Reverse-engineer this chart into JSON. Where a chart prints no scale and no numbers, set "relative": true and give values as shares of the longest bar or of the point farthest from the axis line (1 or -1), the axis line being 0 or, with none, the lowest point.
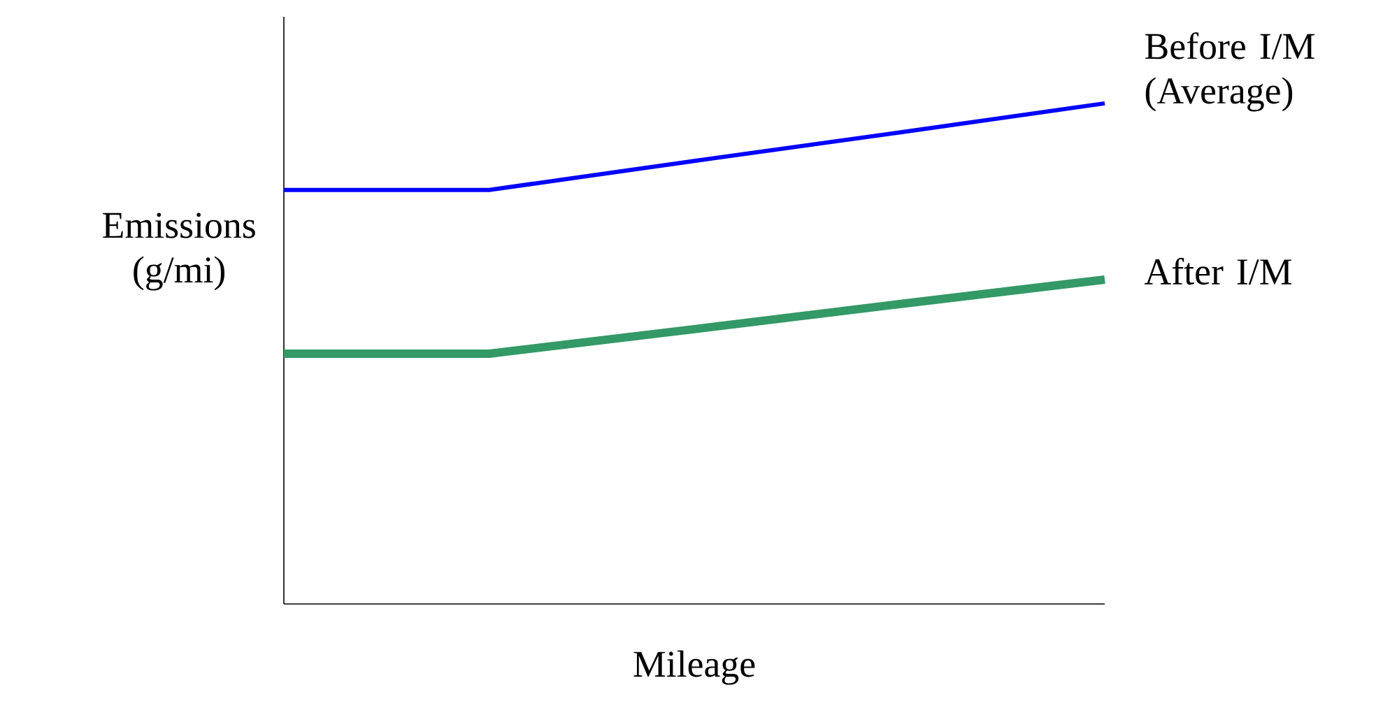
{
  "chart_data": {
    "type": "line",
    "relative": true,
    "xlabel": "Mileage",
    "ylabel": "Emissions (g/mi)",
    "categories": [
      null,
      null,
      null,
      null,
      null
    ],
    "series": [
      {
        "name": "Before I/M (Average)",
        "color": "#0000ff",
        "values": [
          0.827,
          0.827,
          0.885,
          0.942,
          1
        ]
      },
      {
        "name": "After I/M",
        "color": "#339966",
        "values": [
          0.5,
          0.5,
          0.549,
          0.599,
          0.648
        ]
      }
    ]
  }
}
